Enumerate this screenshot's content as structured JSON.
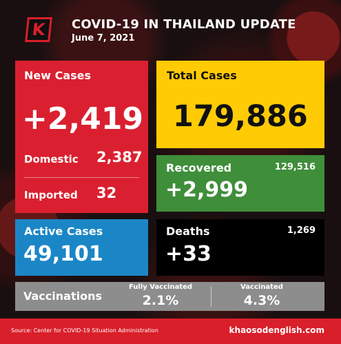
{
  "header": {
    "logo_letter": "K",
    "title": "COVID-19 IN THAILAND UPDATE",
    "date": "June 7, 2021"
  },
  "new_cases": {
    "label": "New Cases",
    "value": "+2,419",
    "domestic_label": "Domestic",
    "domestic_value": "2,387",
    "imported_label": "Imported",
    "imported_value": "32"
  },
  "total_cases": {
    "label": "Total Cases",
    "value": "179,886"
  },
  "recovered": {
    "label": "Recovered",
    "total": "129,516",
    "value": "+2,999"
  },
  "active_cases": {
    "label": "Active Cases",
    "value": "49,101"
  },
  "deaths": {
    "label": "Deaths",
    "total": "1,269",
    "value": "+33"
  },
  "vaccinations": {
    "label": "Vaccinations",
    "fully_label": "Fully Vaccinated",
    "fully_value": "2.1%",
    "vacc_label": "Vaccinated",
    "vacc_value": "4.3%"
  },
  "footer": {
    "source": "Source: Center for COVID-19 Situation Administration",
    "site": "khaosodenglish.com"
  },
  "colors": {
    "red": "#da2030",
    "yellow": "#ffcb05",
    "green": "#3f8e3a",
    "blue": "#1b86c6",
    "black": "#000000",
    "gray": "#8d8d8d"
  }
}
